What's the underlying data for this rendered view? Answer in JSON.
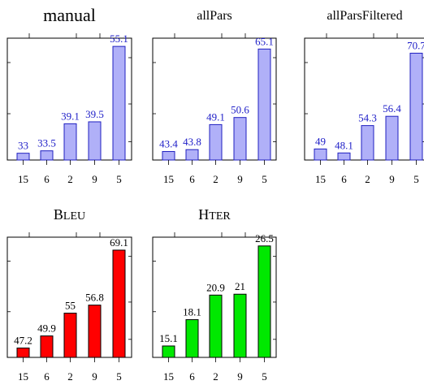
{
  "chart_data": [
    {
      "type": "bar",
      "title": "manual",
      "categories": [
        "15",
        "6",
        "2",
        "9",
        "5"
      ],
      "values": [
        33,
        33.5,
        39.1,
        39.5,
        55.1
      ],
      "ylim": [
        31.6,
        56.8
      ],
      "grid": false,
      "colors": {
        "fill": "#b0b0f8",
        "stroke": "#2020c0",
        "label": "#2020c8"
      }
    },
    {
      "type": "bar",
      "title": "allPars",
      "categories": [
        "15",
        "6",
        "2",
        "9",
        "5"
      ],
      "values": [
        43.4,
        43.8,
        49.1,
        50.6,
        65.1
      ],
      "ylim": [
        41.6,
        67.4
      ],
      "grid": false,
      "colors": {
        "fill": "#b0b0f8",
        "stroke": "#2020c0",
        "label": "#2020c8"
      }
    },
    {
      "type": "bar",
      "title": "allParsFiltered",
      "categories": [
        "15",
        "6",
        "2",
        "9",
        "5"
      ],
      "values": [
        49,
        48.1,
        54.3,
        56.4,
        70.7
      ],
      "ylim": [
        46.5,
        74.1
      ],
      "grid": false,
      "colors": {
        "fill": "#b0b0f8",
        "stroke": "#2020c0",
        "label": "#2020c8"
      }
    },
    {
      "type": "bar",
      "title": "BLEU",
      "categories": [
        "15",
        "6",
        "2",
        "9",
        "5"
      ],
      "values": [
        47.2,
        49.9,
        55,
        56.8,
        69.1
      ],
      "ylim": [
        45.1,
        72.0
      ],
      "grid": false,
      "colors": {
        "fill": "#ff0000",
        "stroke": "#000000",
        "label": "#000000"
      }
    },
    {
      "type": "bar",
      "title": "HTER",
      "categories": [
        "15",
        "6",
        "2",
        "9",
        "5"
      ],
      "values": [
        15.1,
        18.1,
        20.9,
        21,
        26.5
      ],
      "ylim": [
        13.8,
        27.5
      ],
      "grid": false,
      "colors": {
        "fill": "#00e800",
        "stroke": "#000000",
        "label": "#000000"
      }
    }
  ]
}
